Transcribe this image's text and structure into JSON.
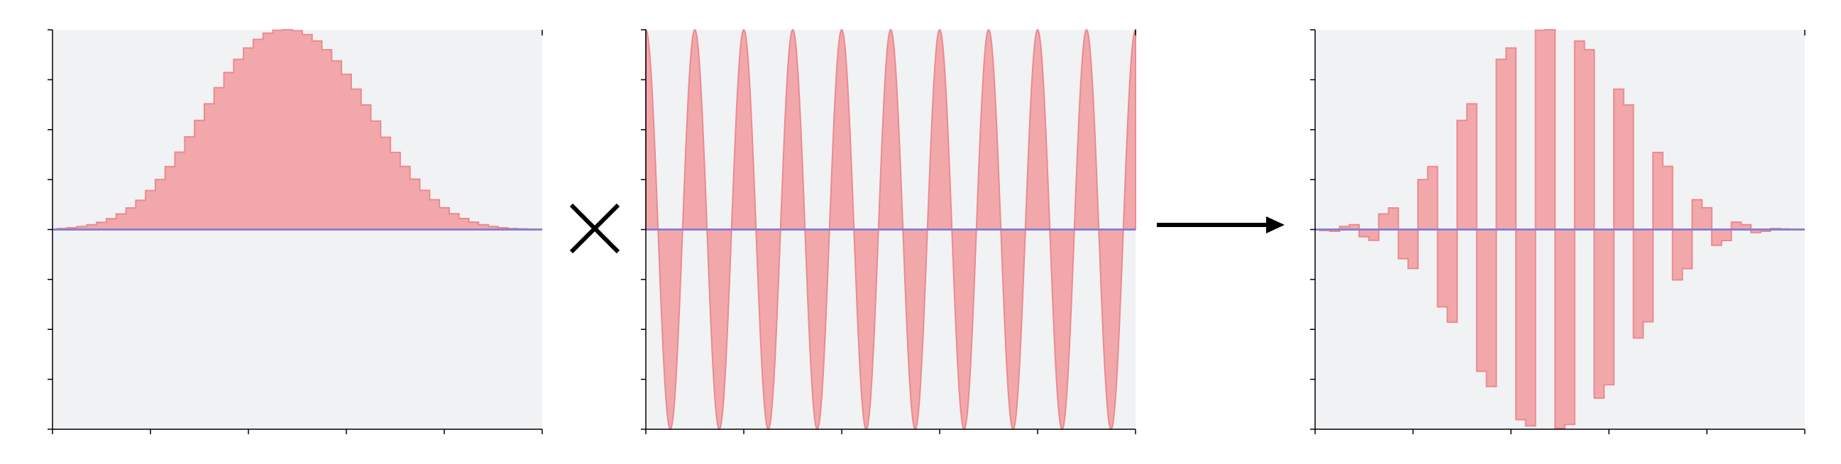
{
  "colors": {
    "panel_background": "#f1f2f4",
    "fill": "#f2a8aa",
    "stroke": "#ea8a90",
    "baseline": "#8f7fd0",
    "axis": "#000000",
    "operator": "#000000"
  },
  "operators": {
    "multiply": "multiply-sign",
    "transform": "right-arrow"
  },
  "chart_data": [
    {
      "type": "area",
      "name_hint": "gaussian-envelope",
      "style": "step",
      "x": [
        0,
        2,
        4,
        6,
        8,
        10,
        12,
        14,
        16,
        18,
        20,
        22,
        24,
        26,
        28,
        30,
        32,
        34,
        36,
        38,
        40,
        42,
        44,
        46,
        48,
        50,
        52,
        54,
        56,
        58,
        60,
        62,
        64,
        66,
        68,
        70,
        72,
        74,
        76,
        78,
        80,
        82,
        84,
        86,
        88,
        90,
        92,
        94,
        96,
        98,
        100
      ],
      "values": [
        0.0,
        0.005,
        0.009,
        0.015,
        0.024,
        0.036,
        0.054,
        0.078,
        0.108,
        0.146,
        0.195,
        0.25,
        0.315,
        0.387,
        0.464,
        0.546,
        0.629,
        0.71,
        0.786,
        0.852,
        0.909,
        0.952,
        0.983,
        0.998,
        1.0,
        0.995,
        0.976,
        0.944,
        0.9,
        0.844,
        0.777,
        0.703,
        0.624,
        0.543,
        0.462,
        0.386,
        0.316,
        0.252,
        0.196,
        0.149,
        0.109,
        0.079,
        0.055,
        0.037,
        0.024,
        0.015,
        0.009,
        0.005,
        0.003,
        0.001,
        0.0
      ],
      "xlim": [
        0,
        100
      ],
      "ylim": [
        -1,
        1
      ],
      "xticks": [
        0,
        20,
        40,
        60,
        80,
        100
      ],
      "yticks": [
        -1,
        -0.75,
        -0.5,
        -0.25,
        0,
        0.25,
        0.5,
        0.75,
        1
      ],
      "baseline": 0,
      "grid": false
    },
    {
      "type": "area",
      "name_hint": "cosine-carrier",
      "style": "smooth",
      "function": "cosine",
      "amplitude": 1,
      "period": 10,
      "phase": 0,
      "xlim": [
        0,
        100
      ],
      "ylim": [
        -1,
        1
      ],
      "xticks": [
        0,
        20,
        40,
        60,
        80,
        100
      ],
      "yticks": [
        -1,
        -0.75,
        -0.5,
        -0.25,
        0,
        0.25,
        0.5,
        0.75,
        1
      ],
      "baseline": 0,
      "grid": false
    },
    {
      "type": "area",
      "name_hint": "modulated-product",
      "style": "step",
      "x": [
        0,
        2,
        4,
        6,
        8,
        10,
        12,
        14,
        16,
        18,
        20,
        22,
        24,
        26,
        28,
        30,
        32,
        34,
        36,
        38,
        40,
        42,
        44,
        46,
        48,
        50,
        52,
        54,
        56,
        58,
        60,
        62,
        64,
        66,
        68,
        70,
        72,
        74,
        76,
        78,
        80,
        82,
        84,
        86,
        88,
        90,
        92,
        94,
        96,
        98,
        100
      ],
      "values": [
        0.0,
        -0.005,
        -0.009,
        0.015,
        0.024,
        -0.036,
        -0.054,
        0.078,
        0.108,
        -0.146,
        -0.195,
        0.25,
        0.315,
        -0.387,
        -0.464,
        0.546,
        0.629,
        -0.71,
        -0.786,
        0.852,
        0.909,
        -0.952,
        -0.983,
        0.998,
        1.0,
        -0.995,
        -0.976,
        0.944,
        0.9,
        -0.844,
        -0.777,
        0.703,
        0.624,
        -0.543,
        -0.462,
        0.386,
        0.316,
        -0.252,
        -0.196,
        0.149,
        0.109,
        -0.079,
        -0.055,
        0.037,
        0.024,
        -0.015,
        -0.009,
        0.005,
        0.003,
        -0.001,
        0.0
      ],
      "xlim": [
        0,
        100
      ],
      "ylim": [
        -1,
        1
      ],
      "xticks": [
        0,
        20,
        40,
        60,
        80,
        100
      ],
      "yticks": [
        -1,
        -0.75,
        -0.5,
        -0.25,
        0,
        0.25,
        0.5,
        0.75,
        1
      ],
      "baseline": 0,
      "grid": false
    }
  ]
}
